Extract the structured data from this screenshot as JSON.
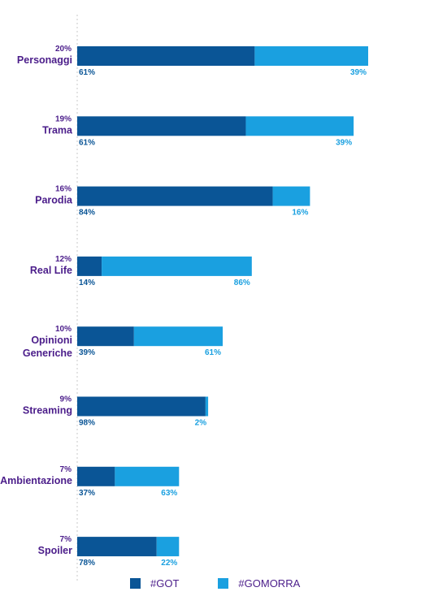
{
  "chart_data": {
    "type": "bar",
    "stacked": true,
    "orientation": "horizontal",
    "categories": [
      {
        "lines": [
          "Personaggi"
        ],
        "total": "20%",
        "got": 61,
        "gomorra": 39
      },
      {
        "lines": [
          "Trama"
        ],
        "total": "19%",
        "got": 61,
        "gomorra": 39
      },
      {
        "lines": [
          "Parodia"
        ],
        "total": "16%",
        "got": 84,
        "gomorra": 16
      },
      {
        "lines": [
          "Real Life"
        ],
        "total": "12%",
        "got": 14,
        "gomorra": 86
      },
      {
        "lines": [
          "Opinioni",
          "Generiche"
        ],
        "total": "10%",
        "got": 39,
        "gomorra": 61
      },
      {
        "lines": [
          "Streaming"
        ],
        "total": "9%",
        "got": 98,
        "gomorra": 2
      },
      {
        "lines": [
          "Ambientazione"
        ],
        "total": "7%",
        "got": 37,
        "gomorra": 63
      },
      {
        "lines": [
          "Spoiler"
        ],
        "total": "7%",
        "got": 78,
        "gomorra": 22
      }
    ],
    "series": [
      {
        "name": "#GOT",
        "color": "#0a5596"
      },
      {
        "name": "#GOMORRA",
        "color": "#1aa0e0"
      }
    ],
    "label_color": "#4b1d8a",
    "legend_position": "bottom"
  }
}
